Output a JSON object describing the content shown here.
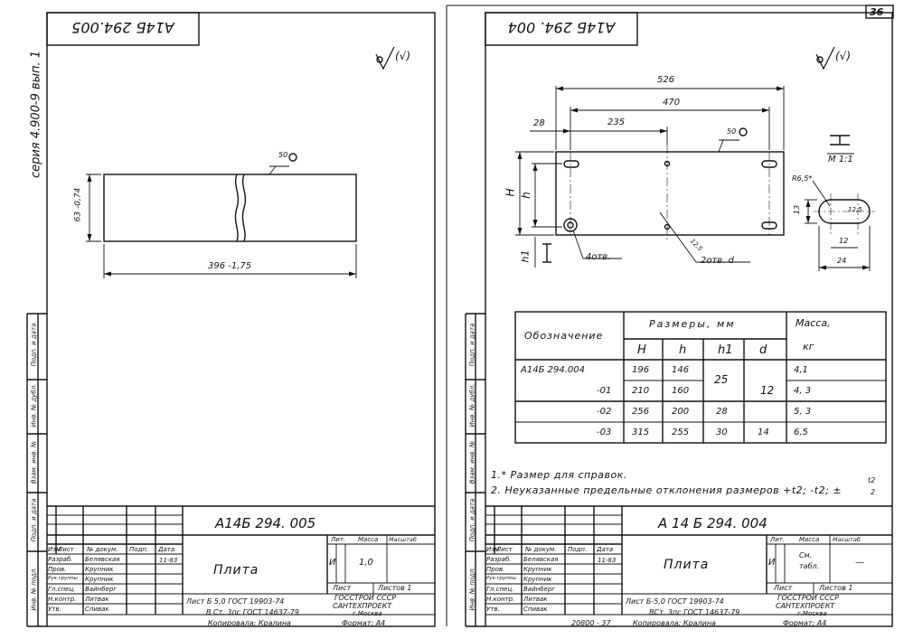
{
  "page": {
    "sheet_number": "36",
    "bottom_code": "20800 - 37"
  },
  "side": {
    "series": "серия 4.900-9  вып. 1"
  },
  "margin_labels": [
    "Инв. № подл.",
    "Подп. и дата",
    "Взам. инв. №",
    "Инв. № дубл.",
    "Подп. и дата"
  ],
  "roughness": "50",
  "left_sheet": {
    "code_top": "А14Б 294.005",
    "dims": {
      "height": "63 -0,74",
      "length": "396 -1,75",
      "roughness_mark": "50"
    },
    "stamp": {
      "code": "А14Б 294. 005",
      "title": "Плита",
      "material_line1": "Лист  Б 5,0  ГОСТ 19903-74",
      "material_line2": "В Ст. 3пс ГОСТ 14637-79",
      "org1": "ГОССТРОЙ СССР",
      "org2": "САНТЕХПРОЕКТ",
      "org3": "г.Москва",
      "lit": "И",
      "mass": "1,0",
      "scale": "—",
      "sheet": "Лист",
      "sheets": "Листов 1",
      "date": "11-83",
      "heads": {
        "lit": "Лит.",
        "mass": "Масса",
        "scale": "Масштаб",
        "izm": "Изм",
        "list": "Лист",
        "doc": "№ докум.",
        "podp": "Подп.",
        "data": "Дата"
      },
      "roles": [
        {
          "role": "Разраб.",
          "name": "Белявская"
        },
        {
          "role": "Пров.",
          "name": "Крупник"
        },
        {
          "role": "Рук.группы",
          "name": "Крупник"
        },
        {
          "role": "Гл.спец.",
          "name": "Вайнберг"
        },
        {
          "role": "Н.контр.",
          "name": "Литвак"
        },
        {
          "role": "Утв.",
          "name": "Спивак"
        }
      ]
    },
    "footer": {
      "copied": "Копировала: Кралина",
      "format": "Формат: А4"
    }
  },
  "right_sheet": {
    "code_top": "А14Б 294. 004",
    "dims": {
      "d526": "526",
      "d470": "470",
      "d235": "235",
      "d28": "28",
      "H": "H",
      "h": "h",
      "h1": "h1",
      "holes4": "4отв.",
      "holes2": "2отв. d",
      "d125": "12,5",
      "roughness_mark": "50"
    },
    "detail": {
      "section": "I",
      "scale": "М 1:1",
      "radius": "R6,5*",
      "d13": "13",
      "d12": "12",
      "d125": "12,5",
      "d24": "24",
      "view_mark": "I"
    },
    "table": {
      "header_designation": "Обозначение",
      "header_dims": "Размеры, мм",
      "header_mass": "Масса,",
      "header_mass_unit": "кг",
      "cols": [
        "H",
        "h",
        "h1",
        "d"
      ],
      "rows": [
        {
          "des": "А14Б 294.004",
          "H": "196",
          "h": "146",
          "mass": "4,1"
        },
        {
          "des": "-01",
          "H": "210",
          "h": "160",
          "mass": "4, 3"
        },
        {
          "des": "-02",
          "H": "256",
          "h": "200",
          "h1": "28",
          "mass": "5, 3"
        },
        {
          "des": "-03",
          "H": "315",
          "h": "255",
          "h1": "30",
          "d": "14",
          "mass": "6,5"
        }
      ],
      "h1_merged": "25",
      "d_merged": "12"
    },
    "notes": {
      "n1": "1.* Размер для справок.",
      "n2": "2. Неуказанные предельные отклонения размеров +t2; -t2; ±",
      "frac_num": "t2",
      "frac_den": "2"
    },
    "stamp": {
      "code": "А 14 Б 294. 004",
      "title": "Плита",
      "material_line1": "Лист   Б-5,0 ГОСТ 19903-74",
      "material_line2": "ВСт. 3пс ГОСТ 14637-79",
      "org1": "ГОССТРОЙ СССР",
      "org2": "САНТЕХПРОЕКТ",
      "org3": "г.Москва",
      "lit": "И",
      "mass1": "См.",
      "mass2": "табл.",
      "scale": "—",
      "sheet": "Лист",
      "sheets": "Листов 1",
      "date": "11-83",
      "heads": {
        "lit": "Лит.",
        "mass": "Масса",
        "scale": "Масштаб",
        "izm": "Изм",
        "list": "Лист",
        "doc": "№ докум.",
        "podp": "Подп.",
        "data": "Дата"
      },
      "roles": [
        {
          "role": "Разраб.",
          "name": "Белявская"
        },
        {
          "role": "Пров.",
          "name": "Крупник"
        },
        {
          "role": "Рук.группы",
          "name": "Крупник"
        },
        {
          "role": "Гл.спец.",
          "name": "Вайнберг"
        },
        {
          "role": "Н.контр.",
          "name": "Литвак"
        },
        {
          "role": "Утв.",
          "name": "Спивак"
        }
      ]
    },
    "footer": {
      "copied": "Копировала: Кралина",
      "format": "Формат: А4"
    }
  }
}
